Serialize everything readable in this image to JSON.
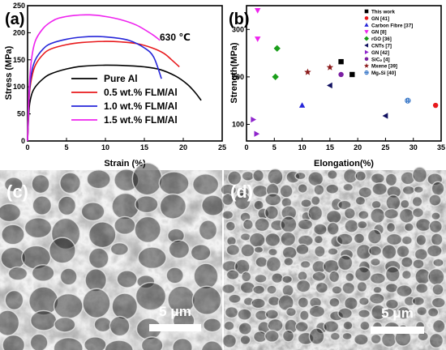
{
  "panels": {
    "a": "(a)",
    "b": "(b)",
    "c": "(c)",
    "d": "(d)"
  },
  "scale_bars": {
    "c": "5 μm",
    "d": "5 μm"
  },
  "chart_data": [
    {
      "panel": "a",
      "type": "line",
      "xlabel": "Strain (%)",
      "ylabel": "Stress (MPa)",
      "annotation": "630 ℃",
      "xlim": [
        0,
        25
      ],
      "ylim": [
        0,
        250
      ],
      "xticks": [
        0,
        5,
        10,
        15,
        20,
        25
      ],
      "yticks": [
        0,
        50,
        100,
        150,
        200,
        250
      ],
      "legend_position": "bottom-right",
      "series": [
        {
          "name": "Pure Al",
          "color": "#000000",
          "x": [
            0,
            0.2,
            0.5,
            1,
            2,
            3,
            5,
            7,
            10,
            13,
            15,
            17,
            19,
            20.5,
            21.5,
            22.3
          ],
          "y": [
            0,
            60,
            85,
            100,
            115,
            124,
            133,
            138,
            140,
            139,
            137,
            132,
            120,
            105,
            90,
            75
          ]
        },
        {
          "name": "0.5 wt.% FLM/Al",
          "color": "#e8191c",
          "x": [
            0,
            0.2,
            0.5,
            1,
            2,
            3,
            5,
            7,
            10,
            12,
            14,
            16,
            17.5,
            18.5,
            19.5
          ],
          "y": [
            0,
            80,
            115,
            140,
            160,
            170,
            178,
            182,
            184,
            183,
            180,
            172,
            162,
            150,
            137
          ]
        },
        {
          "name": "1.0 wt.% FLM/Al",
          "color": "#2626d9",
          "x": [
            0,
            0.2,
            0.5,
            1,
            2,
            3,
            5,
            7,
            9,
            11,
            13,
            15,
            16.2,
            17.2
          ],
          "y": [
            0,
            85,
            125,
            150,
            170,
            180,
            188,
            192,
            193,
            191,
            186,
            172,
            155,
            115
          ]
        },
        {
          "name": "1.5 wt.% FLM/Al",
          "color": "#ee22ee",
          "x": [
            0,
            0.2,
            0.5,
            1,
            2,
            3,
            4,
            6,
            8,
            10,
            12,
            14,
            16,
            17
          ],
          "y": [
            0,
            95,
            150,
            185,
            208,
            220,
            227,
            232,
            233,
            230,
            224,
            214,
            197,
            186
          ]
        }
      ]
    },
    {
      "panel": "b",
      "type": "scatter",
      "xlabel": "Elongation(%)",
      "ylabel": "Strength(MPa)",
      "xlim": [
        0,
        35
      ],
      "ylim": [
        65,
        350
      ],
      "xticks": [
        0,
        5,
        10,
        15,
        20,
        25,
        30,
        35
      ],
      "yticks": [
        100,
        200,
        300
      ],
      "legend_position": "top-right",
      "series": [
        {
          "name": "This work",
          "marker": "square",
          "color": "#000000",
          "points": [
            [
              17,
              232
            ],
            [
              19,
              205
            ]
          ]
        },
        {
          "name": "GN [41]",
          "marker": "circle",
          "color": "#e8191c",
          "points": [
            [
              34,
              140
            ]
          ]
        },
        {
          "name": "Carbon Fibre [37]",
          "marker": "triangle-up",
          "color": "#2626d9",
          "points": [
            [
              10,
              140
            ]
          ]
        },
        {
          "name": "GN [8]",
          "marker": "triangle-down",
          "color": "#ee22ee",
          "points": [
            [
              2,
              340
            ],
            [
              2,
              280
            ]
          ]
        },
        {
          "name": "rGO [36]",
          "marker": "diamond",
          "color": "#1a9e1a",
          "points": [
            [
              5.5,
              260
            ],
            [
              5.2,
              200
            ]
          ]
        },
        {
          "name": "CNTs [7]",
          "marker": "triangle-left",
          "color": "#101060",
          "points": [
            [
              15,
              182
            ],
            [
              25,
              118
            ]
          ]
        },
        {
          "name": "GN [42]",
          "marker": "triangle-right",
          "color": "#8e24cc",
          "points": [
            [
              1.2,
              110
            ],
            [
              1.8,
              80
            ]
          ]
        },
        {
          "name": "SiCₚ [4]",
          "marker": "circle",
          "color": "#7b1fa2",
          "points": [
            [
              17,
              205
            ]
          ]
        },
        {
          "name": "Mxene [39]",
          "marker": "star",
          "color": "#8b1a1a",
          "points": [
            [
              11,
              210
            ],
            [
              15,
              220
            ]
          ]
        },
        {
          "name": "Mg₂Si [40]",
          "marker": "circle-hatched",
          "color": "#3a78c8",
          "points": [
            [
              29,
              150
            ]
          ]
        }
      ]
    }
  ]
}
